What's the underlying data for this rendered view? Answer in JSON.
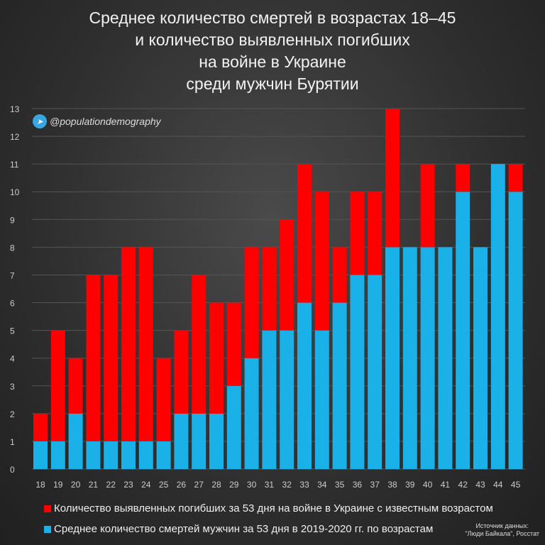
{
  "chart_data": {
    "type": "bar",
    "stacked": true,
    "title_lines": [
      "Среднее количество смертей в возрастах 18–45",
      "и количество выявленных погибших",
      "на войне в Украине",
      "среди мужчин Бурятии"
    ],
    "handle": "@populationdemography",
    "categories": [
      "18",
      "19",
      "20",
      "21",
      "22",
      "23",
      "24",
      "25",
      "26",
      "27",
      "28",
      "29",
      "30",
      "31",
      "32",
      "33",
      "34",
      "35",
      "36",
      "37",
      "38",
      "39",
      "40",
      "41",
      "42",
      "43",
      "44",
      "45"
    ],
    "series": [
      {
        "name": "Среднее количество смертей мужчин за 53 дня в 2019-2020 гг. по возрастам",
        "color": "#1ab0e8",
        "values": [
          1,
          1,
          2,
          1,
          1,
          1,
          1,
          1,
          2,
          2,
          2,
          3,
          4,
          5,
          5,
          6,
          5,
          6,
          7,
          7,
          8,
          8,
          8,
          8,
          10,
          8,
          11,
          10
        ]
      },
      {
        "name": "Количество выявленных погибших за 53 дня на войне в Украине с известным возрастом",
        "color": "#ff0000",
        "values": [
          1,
          4,
          2,
          6,
          6,
          7,
          7,
          3,
          3,
          5,
          4,
          3,
          4,
          3,
          4,
          5,
          5,
          2,
          3,
          3,
          5,
          0,
          3,
          0,
          1,
          0,
          0,
          1
        ]
      }
    ],
    "yticks": [
      "0",
      "1",
      "2",
      "3",
      "4",
      "5",
      "6",
      "7",
      "8",
      "9",
      "10",
      "11",
      "12",
      "13"
    ],
    "ylim": [
      0,
      13
    ],
    "grid": true,
    "legend_position": "bottom",
    "source_lines": [
      "Источник данных:",
      "\"Люди Байкала\", Росстат"
    ]
  }
}
